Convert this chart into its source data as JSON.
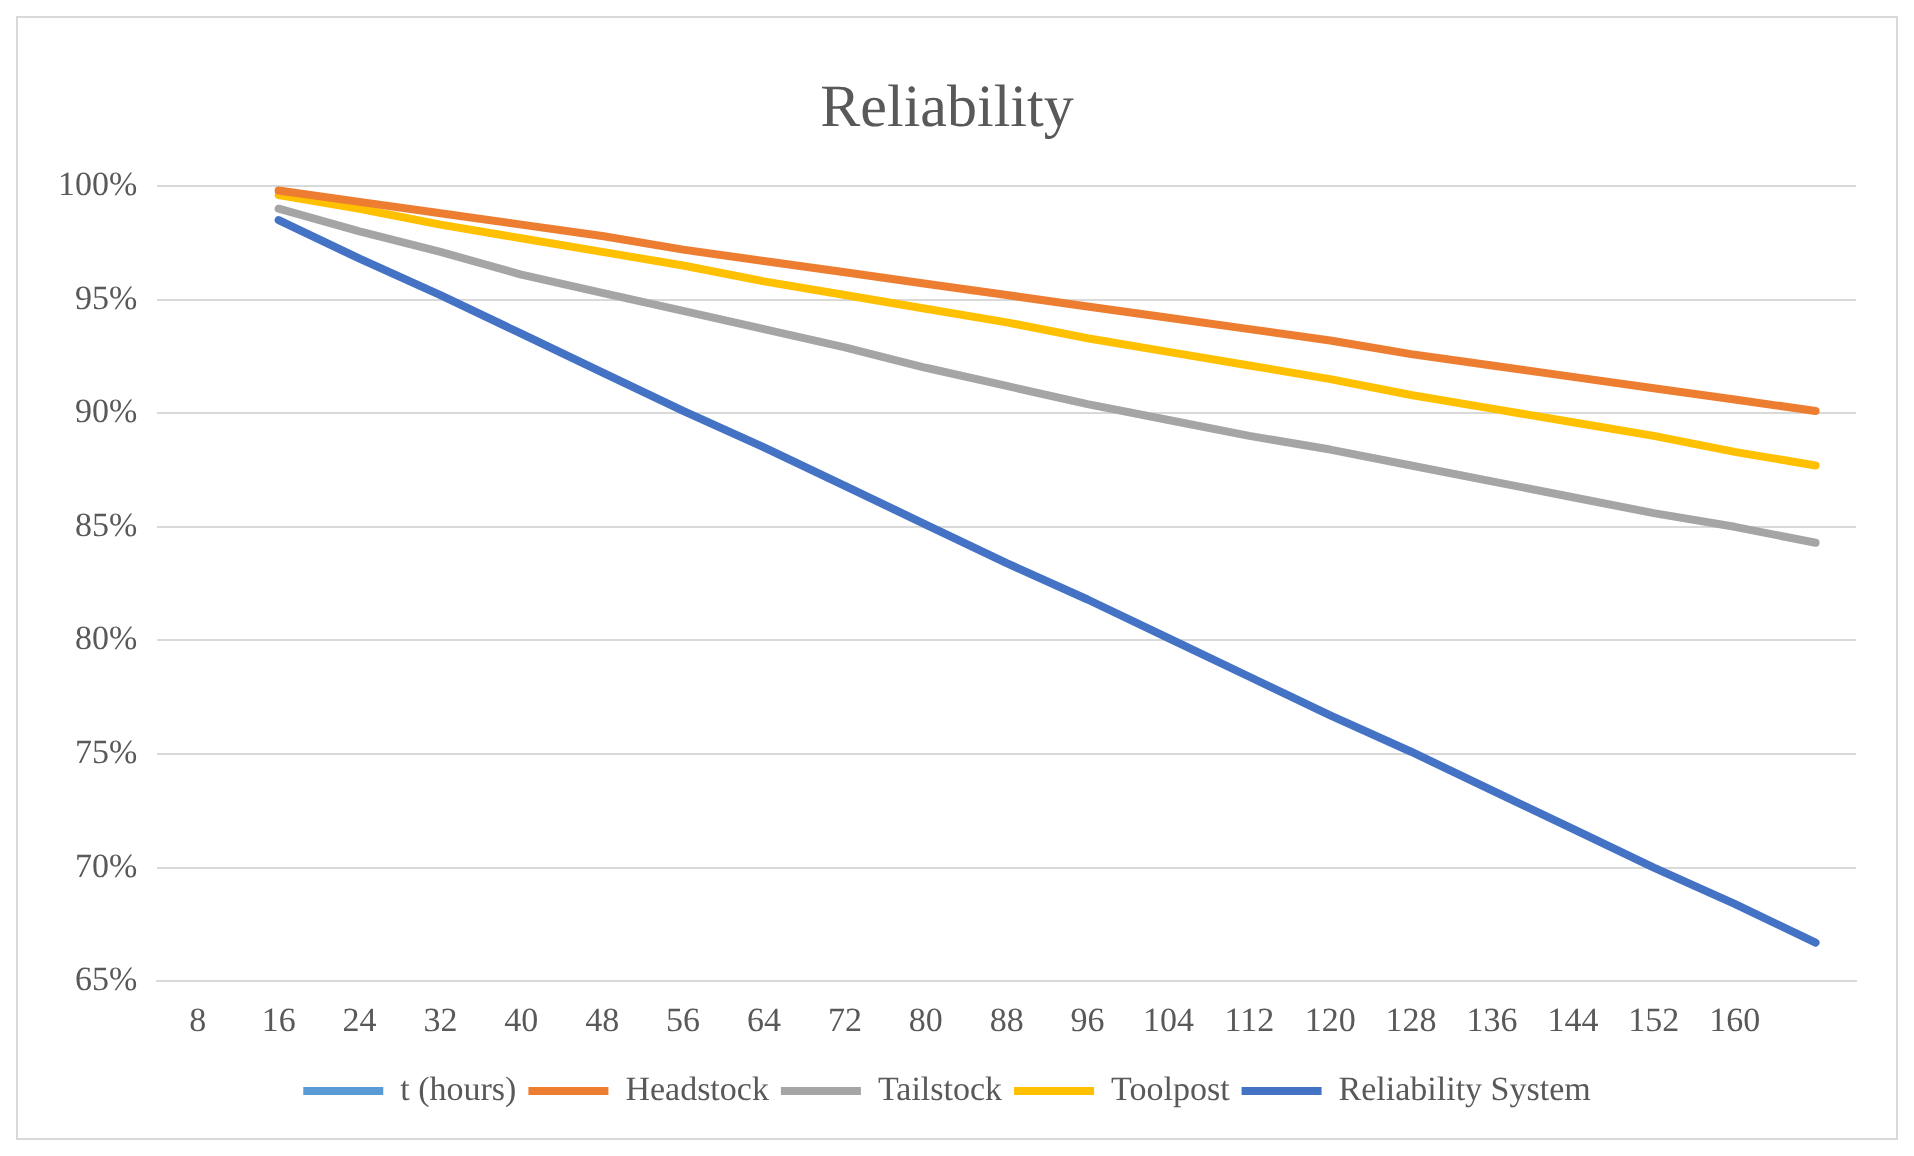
{
  "chart_data": {
    "type": "line",
    "title": "Reliability",
    "categories": [
      "8",
      "16",
      "24",
      "32",
      "40",
      "48",
      "56",
      "64",
      "72",
      "80",
      "88",
      "96",
      "104",
      "112",
      "120",
      "128",
      "136",
      "144",
      "152",
      "160",
      null
    ],
    "series": [
      {
        "name": "t (hours)",
        "color": "#5b9bd5",
        "values": [
          null,
          null,
          null,
          null,
          null,
          null,
          null,
          null,
          null,
          null,
          null,
          null,
          null,
          null,
          null,
          null,
          null,
          null,
          null,
          null,
          null
        ]
      },
      {
        "name": "Headstock",
        "color": "#ed7d31",
        "values": [
          null,
          99.8,
          99.3,
          98.8,
          98.3,
          97.8,
          97.2,
          96.7,
          96.2,
          95.7,
          95.2,
          94.7,
          94.2,
          93.7,
          93.2,
          92.6,
          92.1,
          91.6,
          91.1,
          90.6,
          90.1
        ]
      },
      {
        "name": "Tailstock",
        "color": "#a5a5a5",
        "values": [
          null,
          99.0,
          98.0,
          97.1,
          96.1,
          95.3,
          94.5,
          93.7,
          92.9,
          92.0,
          91.2,
          90.4,
          89.7,
          89.0,
          88.4,
          87.7,
          87.0,
          86.3,
          85.6,
          85.0,
          84.3
        ]
      },
      {
        "name": "Toolpost",
        "color": "#ffc000",
        "values": [
          null,
          99.6,
          99.0,
          98.3,
          97.7,
          97.1,
          96.5,
          95.8,
          95.2,
          94.6,
          94.0,
          93.3,
          92.7,
          92.1,
          91.5,
          90.8,
          90.2,
          89.6,
          89.0,
          88.3,
          87.7
        ]
      },
      {
        "name": "Reliability System",
        "color": "#4472c4",
        "values": [
          null,
          98.5,
          96.8,
          95.2,
          93.5,
          91.8,
          90.1,
          88.5,
          86.8,
          85.1,
          83.4,
          81.8,
          80.1,
          78.4,
          76.7,
          75.1,
          73.4,
          71.7,
          70.0,
          68.4,
          66.7
        ]
      }
    ],
    "ylim": [
      65,
      100
    ],
    "yticks": [
      {
        "value": 65,
        "label": "65%"
      },
      {
        "value": 70,
        "label": "70%"
      },
      {
        "value": 75,
        "label": "75%"
      },
      {
        "value": 80,
        "label": "80%"
      },
      {
        "value": 85,
        "label": "85%"
      },
      {
        "value": 90,
        "label": "90%"
      },
      {
        "value": 95,
        "label": "95%"
      },
      {
        "value": 100,
        "label": "100%"
      }
    ],
    "grid": "y",
    "legend": "bottom",
    "marker": "none",
    "line_style": "solid"
  }
}
